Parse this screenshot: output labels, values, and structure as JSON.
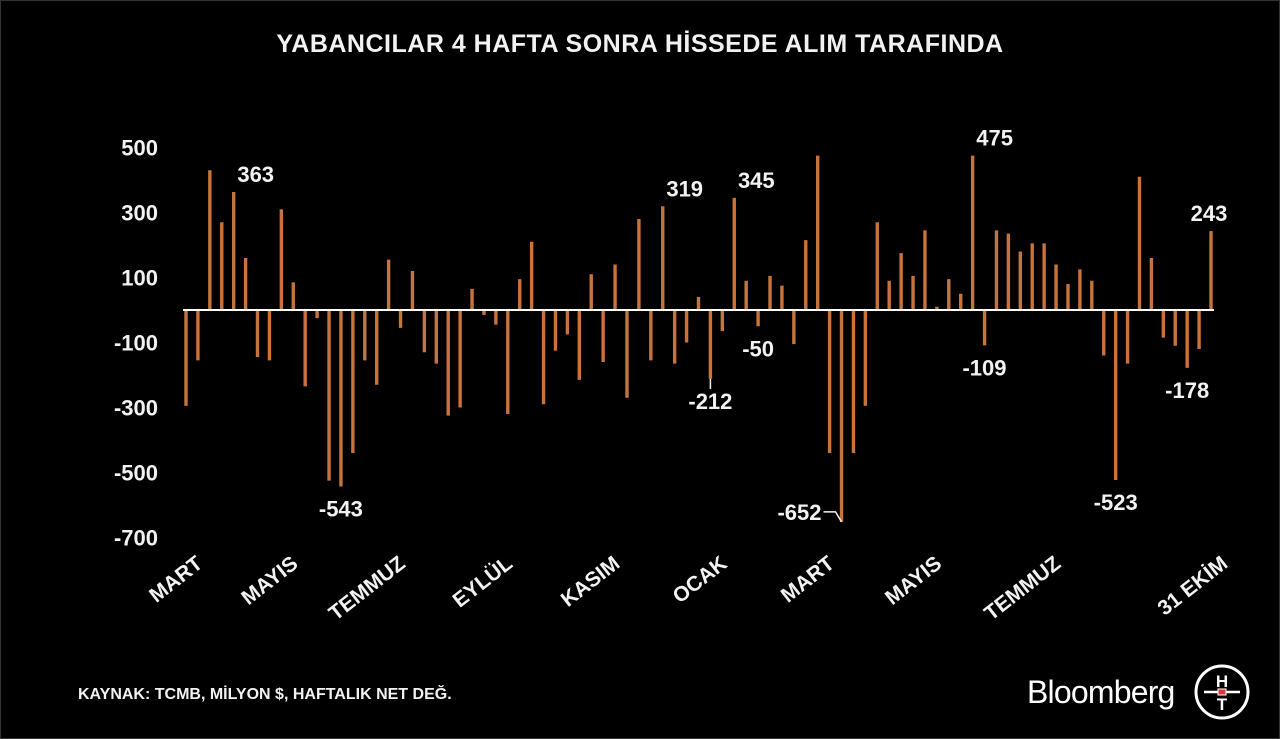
{
  "title": "YABANCILAR 4 HAFTA SONRA HİSSEDE ALIM TARAFINDA",
  "source": "KAYNAK: TCMB, MİLYON $, HAFTALIK NET DEĞ.",
  "brand": "Bloomberg",
  "logo": {
    "top_letter": "H",
    "bottom_letter": "T"
  },
  "colors": {
    "background": "#000000",
    "bar": "#c8733b",
    "text": "#f2f2f2",
    "zero_line": "#ffffff"
  },
  "chart_data": {
    "type": "bar",
    "title": "YABANCILAR 4 HAFTA SONRA HİSSEDE ALIM TARAFINDA",
    "xlabel": "",
    "ylabel": "",
    "ylim": [
      -700,
      500
    ],
    "yticks": [
      500,
      300,
      100,
      -100,
      -300,
      -500,
      -700
    ],
    "grid": false,
    "values": [
      -295,
      -155,
      430,
      270,
      363,
      160,
      -145,
      -155,
      310,
      85,
      -235,
      -25,
      -525,
      -543,
      -440,
      -155,
      -230,
      155,
      -55,
      120,
      -130,
      -165,
      -325,
      -300,
      65,
      -15,
      -45,
      -320,
      95,
      210,
      -290,
      -125,
      -75,
      -215,
      110,
      -160,
      140,
      -270,
      280,
      -155,
      319,
      -165,
      -100,
      40,
      -212,
      -65,
      345,
      90,
      -50,
      105,
      75,
      -105,
      215,
      475,
      -440,
      -652,
      -440,
      -295,
      270,
      90,
      175,
      105,
      245,
      10,
      95,
      50,
      475,
      -109,
      245,
      235,
      180,
      205,
      205,
      140,
      80,
      125,
      90,
      -140,
      -523,
      -165,
      410,
      160,
      -85,
      -110,
      -178,
      -120,
      243
    ],
    "x_labels": [
      {
        "label": "MART",
        "index": 0
      },
      {
        "label": "MAYIS",
        "index": 8
      },
      {
        "label": "TEMMUZ",
        "index": 17
      },
      {
        "label": "EYLÜL",
        "index": 26
      },
      {
        "label": "KASIM",
        "index": 35
      },
      {
        "label": "OCAK",
        "index": 44
      },
      {
        "label": "MART",
        "index": 53
      },
      {
        "label": "MAYIS",
        "index": 62
      },
      {
        "label": "TEMMUZ",
        "index": 72
      },
      {
        "label": "31 EKİM",
        "index": 86
      }
    ],
    "annotations": [
      {
        "index": 4,
        "label": "363"
      },
      {
        "index": 13,
        "label": "-543"
      },
      {
        "index": 40,
        "label": "319"
      },
      {
        "index": 44,
        "label": "-212"
      },
      {
        "index": 46,
        "label": "345"
      },
      {
        "index": 48,
        "label": "-50"
      },
      {
        "index": 55,
        "label": "-652"
      },
      {
        "index": 66,
        "label": "475"
      },
      {
        "index": 67,
        "label": "-109"
      },
      {
        "index": 78,
        "label": "-523"
      },
      {
        "index": 84,
        "label": "-178"
      },
      {
        "index": 86,
        "label": "243"
      }
    ]
  }
}
